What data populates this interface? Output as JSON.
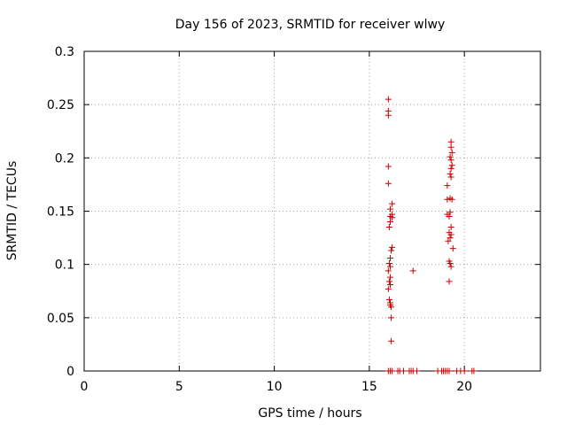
{
  "chart_data": {
    "type": "scatter",
    "title": "Day 156 of 2023, SRMTID for receiver wlwy",
    "xlabel": "GPS time / hours",
    "ylabel": "SRMTID / TECUs",
    "xlim": [
      0,
      24
    ],
    "ylim": [
      0,
      0.3
    ],
    "xticks": [
      "0",
      "5",
      "10",
      "15",
      "20"
    ],
    "xtick_values": [
      0,
      5,
      10,
      15,
      20
    ],
    "yticks": [
      "0",
      "0.05",
      "0.1",
      "0.15",
      "0.2",
      "0.25",
      "0.3"
    ],
    "ytick_values": [
      0,
      0.05,
      0.1,
      0.15,
      0.2,
      0.25,
      0.3
    ],
    "grid": true,
    "marker": "+",
    "color": "#cc0000",
    "series": [
      {
        "points": [
          [
            16.0,
            0
          ],
          [
            16.1,
            0
          ],
          [
            16.2,
            0
          ],
          [
            16.5,
            0
          ],
          [
            16.6,
            0
          ],
          [
            16.8,
            0
          ],
          [
            17.1,
            0
          ],
          [
            17.2,
            0
          ],
          [
            17.3,
            0
          ],
          [
            17.5,
            0
          ],
          [
            18.6,
            0
          ],
          [
            18.8,
            0
          ],
          [
            18.9,
            0
          ],
          [
            19.0,
            0
          ],
          [
            19.1,
            0
          ],
          [
            19.2,
            0
          ],
          [
            19.6,
            0
          ],
          [
            19.8,
            0
          ],
          [
            20.0,
            0
          ],
          [
            20.4,
            0
          ],
          [
            20.5,
            0
          ],
          [
            16.0,
            0.255
          ],
          [
            16.0,
            0.244
          ],
          [
            16.0,
            0.24
          ],
          [
            16.0,
            0.192
          ],
          [
            16.0,
            0.176
          ],
          [
            16.1,
            0.152
          ],
          [
            16.2,
            0.157
          ],
          [
            16.2,
            0.147
          ],
          [
            16.1,
            0.145
          ],
          [
            16.2,
            0.144
          ],
          [
            16.05,
            0.135
          ],
          [
            16.1,
            0.14
          ],
          [
            16.2,
            0.116
          ],
          [
            16.15,
            0.113
          ],
          [
            16.1,
            0.106
          ],
          [
            16.05,
            0.101
          ],
          [
            16.1,
            0.098
          ],
          [
            16.0,
            0.094
          ],
          [
            16.1,
            0.088
          ],
          [
            16.05,
            0.084
          ],
          [
            16.1,
            0.081
          ],
          [
            16.0,
            0.077
          ],
          [
            16.05,
            0.067
          ],
          [
            16.1,
            0.064
          ],
          [
            16.1,
            0.062
          ],
          [
            16.15,
            0.06
          ],
          [
            16.15,
            0.05
          ],
          [
            16.15,
            0.028
          ],
          [
            17.3,
            0.094
          ],
          [
            19.3,
            0.215
          ],
          [
            19.3,
            0.21
          ],
          [
            19.35,
            0.205
          ],
          [
            19.25,
            0.201
          ],
          [
            19.3,
            0.198
          ],
          [
            19.35,
            0.193
          ],
          [
            19.3,
            0.19
          ],
          [
            19.25,
            0.185
          ],
          [
            19.3,
            0.182
          ],
          [
            19.1,
            0.174
          ],
          [
            19.25,
            0.162
          ],
          [
            19.1,
            0.161
          ],
          [
            19.35,
            0.161
          ],
          [
            19.25,
            0.149
          ],
          [
            19.1,
            0.147
          ],
          [
            19.2,
            0.145
          ],
          [
            19.3,
            0.135
          ],
          [
            19.2,
            0.13
          ],
          [
            19.3,
            0.128
          ],
          [
            19.25,
            0.125
          ],
          [
            19.15,
            0.122
          ],
          [
            19.4,
            0.115
          ],
          [
            19.2,
            0.103
          ],
          [
            19.25,
            0.101
          ],
          [
            19.3,
            0.098
          ],
          [
            19.2,
            0.084
          ]
        ]
      }
    ]
  }
}
